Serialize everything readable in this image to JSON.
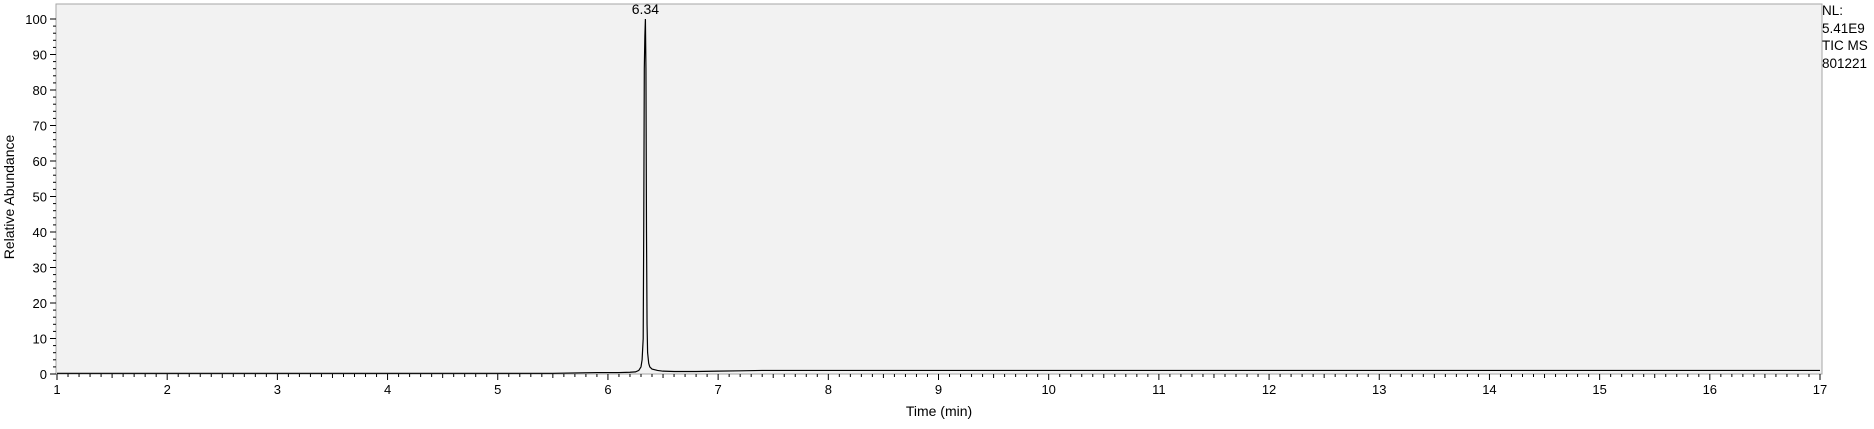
{
  "chart_data": {
    "type": "line",
    "xlabel": "Time (min)",
    "ylabel": "Relative Abundance",
    "xlim": [
      1,
      17
    ],
    "ylim": [
      0,
      100
    ],
    "x_ticks": [
      "1",
      "2",
      "3",
      "4",
      "5",
      "6",
      "7",
      "8",
      "9",
      "10",
      "11",
      "12",
      "13",
      "14",
      "15",
      "16",
      "17"
    ],
    "y_ticks": [
      "0",
      "10",
      "20",
      "30",
      "40",
      "50",
      "60",
      "70",
      "80",
      "90",
      "100"
    ],
    "grid": false,
    "background_color": "#f2f2f2",
    "line_color": "#000000",
    "series": [
      {
        "x": [
          1.0,
          2.0,
          3.0,
          4.0,
          5.0,
          5.5,
          5.7,
          5.9,
          6.0,
          6.1,
          6.2,
          6.25,
          6.28,
          6.3,
          6.31,
          6.32,
          6.325,
          6.33,
          6.335,
          6.34,
          6.345,
          6.35,
          6.355,
          6.36,
          6.37,
          6.38,
          6.4,
          6.45,
          6.5,
          6.6,
          6.8,
          7.0,
          7.2,
          7.4,
          7.6,
          8.0,
          9.0,
          10.0,
          11.0,
          12.0,
          13.0,
          14.0,
          15.0,
          16.0,
          17.0
        ],
        "y": [
          0.2,
          0.2,
          0.2,
          0.2,
          0.2,
          0.2,
          0.3,
          0.4,
          0.4,
          0.4,
          0.5,
          0.6,
          1.0,
          2.0,
          4.0,
          10.0,
          42.0,
          86.0,
          95.0,
          100.0,
          86.0,
          40.0,
          14.0,
          6.0,
          3.0,
          2.0,
          1.4,
          1.0,
          0.8,
          0.7,
          0.7,
          0.8,
          0.9,
          1.0,
          1.0,
          1.0,
          1.0,
          1.0,
          1.0,
          1.0,
          1.0,
          1.0,
          1.0,
          1.0,
          1.0
        ]
      }
    ],
    "annotations": [
      {
        "text": "6.34",
        "x": 6.34,
        "y": 100
      }
    ]
  },
  "info": {
    "line1": "NL:",
    "line2": "5.41E9",
    "line3": "TIC  MS",
    "line4": "801221"
  }
}
